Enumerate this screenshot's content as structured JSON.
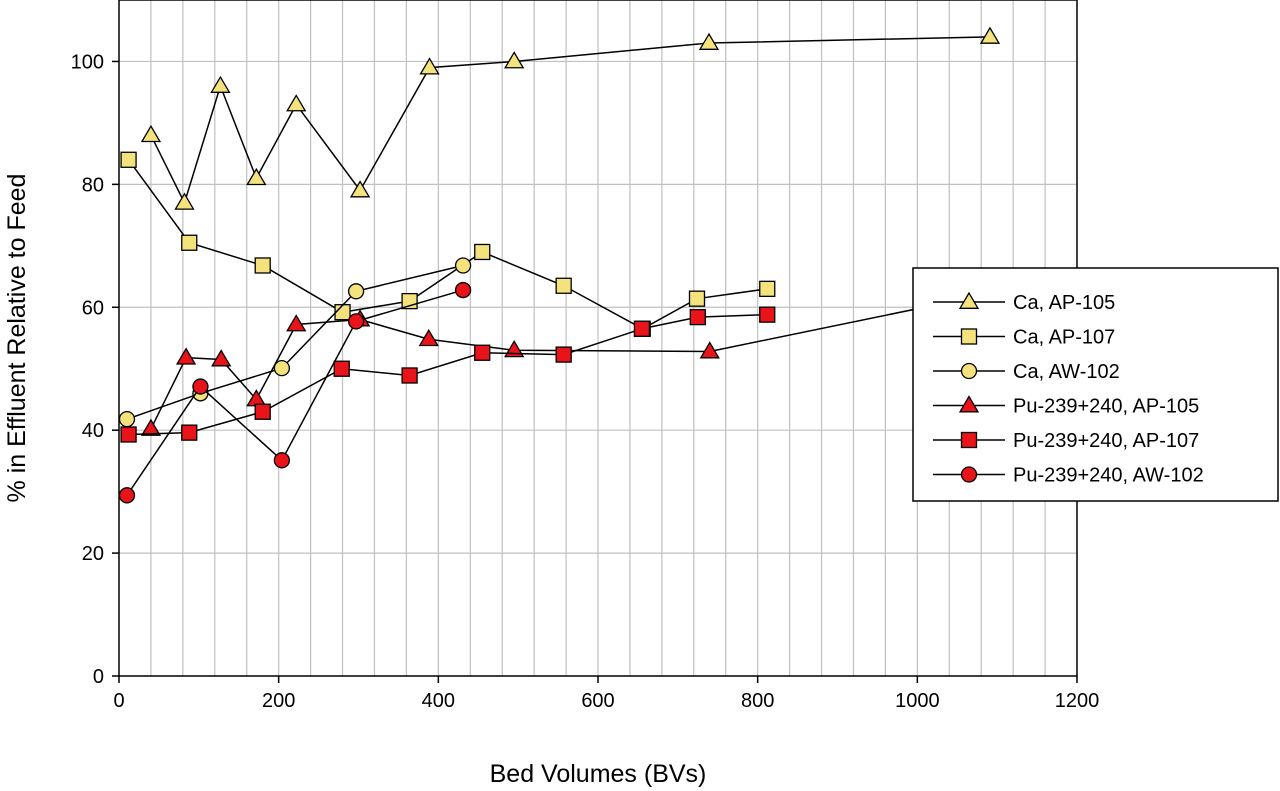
{
  "chart_data": {
    "type": "line",
    "title": "",
    "xlabel": "Bed Volumes (BVs)",
    "ylabel": "% in Effluent Relative to Feed",
    "xlim": [
      0,
      1200
    ],
    "ylim": [
      0,
      110
    ],
    "xticks": [
      0,
      200,
      400,
      600,
      800,
      1000,
      1200
    ],
    "yticks": [
      0,
      20,
      40,
      60,
      80,
      100
    ],
    "x_minor_step": 40,
    "grid": true,
    "legend_position": "right",
    "series": [
      {
        "name": "Ca, AP-105",
        "marker": "triangle",
        "color": "#f4e27c",
        "x": [
          40,
          82,
          127,
          172,
          222,
          302,
          389,
          495,
          739,
          1091
        ],
        "y": [
          88,
          77,
          96,
          81,
          93,
          79,
          99,
          100,
          103,
          104
        ]
      },
      {
        "name": "Ca, AP-107",
        "marker": "square",
        "color": "#f4e27c",
        "x": [
          12,
          88,
          180,
          280,
          364,
          455,
          557,
          656,
          724,
          812
        ],
        "y": [
          84,
          70.5,
          66.8,
          59.2,
          61,
          69,
          63.5,
          56.5,
          61.4,
          63
        ]
      },
      {
        "name": "Ca, AW-102",
        "marker": "circle",
        "color": "#f4e27c",
        "x": [
          10,
          102,
          204,
          297,
          431
        ],
        "y": [
          41.8,
          46,
          50.1,
          62.6,
          66.8
        ]
      },
      {
        "name": "Pu-239+240, AP-105",
        "marker": "triangle",
        "color": "#e8141a",
        "x": [
          40,
          84,
          128,
          172,
          222,
          302,
          388,
          495,
          740,
          1091
        ],
        "y": [
          40.2,
          51.8,
          51.5,
          45,
          57.2,
          58,
          54.8,
          53,
          52.8,
          62.2
        ]
      },
      {
        "name": "Pu-239+240, AP-107",
        "marker": "square",
        "color": "#e8141a",
        "x": [
          12,
          88,
          180,
          279,
          364,
          455,
          557,
          655,
          725,
          812
        ],
        "y": [
          39.3,
          39.6,
          43,
          50,
          48.9,
          52.6,
          52.3,
          56.5,
          58.4,
          58.8
        ]
      },
      {
        "name": "Pu-239+240, AW-102",
        "marker": "circle",
        "color": "#e8141a",
        "x": [
          10,
          102,
          204,
          297,
          431
        ],
        "y": [
          29.4,
          47.1,
          35.1,
          57.7,
          62.8
        ]
      }
    ]
  }
}
